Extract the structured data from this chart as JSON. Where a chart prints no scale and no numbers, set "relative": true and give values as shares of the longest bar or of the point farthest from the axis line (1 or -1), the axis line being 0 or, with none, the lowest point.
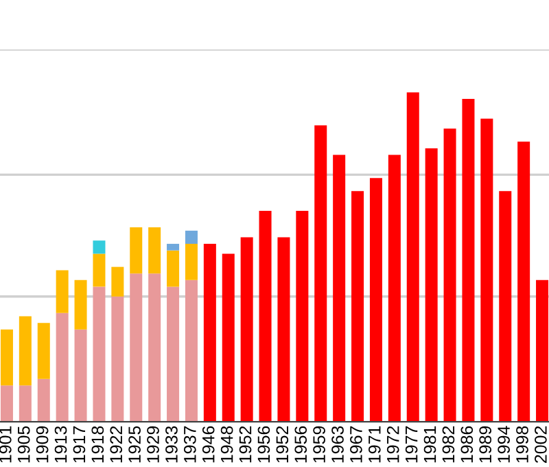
{
  "chart_data": {
    "type": "bar",
    "stacked": true,
    "relative": true,
    "ref_lines": [
      {
        "axis": "y",
        "value": 0.38,
        "color": "#d0d0d0"
      },
      {
        "axis": "y",
        "value": 0.75,
        "color": "#d0d0d0"
      },
      {
        "axis": "y",
        "value": 1.13,
        "color": "#d0d0d0"
      }
    ],
    "categories": [
      "1901",
      "1905",
      "1909",
      "1913",
      "1917",
      "1918",
      "1922",
      "1925",
      "1929",
      "1933",
      "1937",
      "1946",
      "1948",
      "1952",
      "1956",
      "1952",
      "1956",
      "1959",
      "1963",
      "1967",
      "1971",
      "1972",
      "1977",
      "1981",
      "1982",
      "1986",
      "1989",
      "1994",
      "1998",
      "2002"
    ],
    "series": [
      {
        "color": "#e8999a",
        "values": [
          0.11,
          0.11,
          0.13,
          0.33,
          0.28,
          0.41,
          0.38,
          0.45,
          0.45,
          0.41,
          0.43,
          null,
          null,
          null,
          null,
          null,
          null,
          null,
          null,
          null,
          null,
          null,
          null,
          null,
          null,
          null,
          null,
          null,
          null,
          null
        ]
      },
      {
        "color": "#ffbb00",
        "values": [
          0.17,
          0.21,
          0.17,
          0.13,
          0.15,
          0.1,
          0.09,
          0.14,
          0.14,
          0.11,
          0.11,
          null,
          null,
          null,
          null,
          null,
          null,
          null,
          null,
          null,
          null,
          null,
          null,
          null,
          null,
          null,
          null,
          null,
          null,
          null
        ]
      },
      {
        "color": "#33ccdd",
        "values": [
          null,
          null,
          null,
          null,
          null,
          0.04,
          null,
          null,
          null,
          null,
          null,
          null,
          null,
          null,
          null,
          null,
          null,
          null,
          null,
          null,
          null,
          null,
          null,
          null,
          null,
          null,
          null,
          null,
          null,
          null
        ]
      },
      {
        "color": "#6fa8dc",
        "values": [
          null,
          null,
          null,
          null,
          null,
          null,
          null,
          null,
          null,
          0.02,
          0.04,
          null,
          null,
          null,
          null,
          null,
          null,
          null,
          null,
          null,
          null,
          null,
          null,
          null,
          null,
          null,
          null,
          null,
          null,
          null
        ]
      },
      {
        "color": "#ff0000",
        "values": [
          null,
          null,
          null,
          null,
          null,
          null,
          null,
          null,
          null,
          null,
          null,
          0.54,
          0.51,
          0.56,
          0.64,
          0.56,
          0.64,
          0.9,
          0.81,
          0.7,
          0.74,
          0.81,
          1,
          0.83,
          0.89,
          0.98,
          0.92,
          0.7,
          0.85,
          0.43
        ]
      }
    ]
  }
}
